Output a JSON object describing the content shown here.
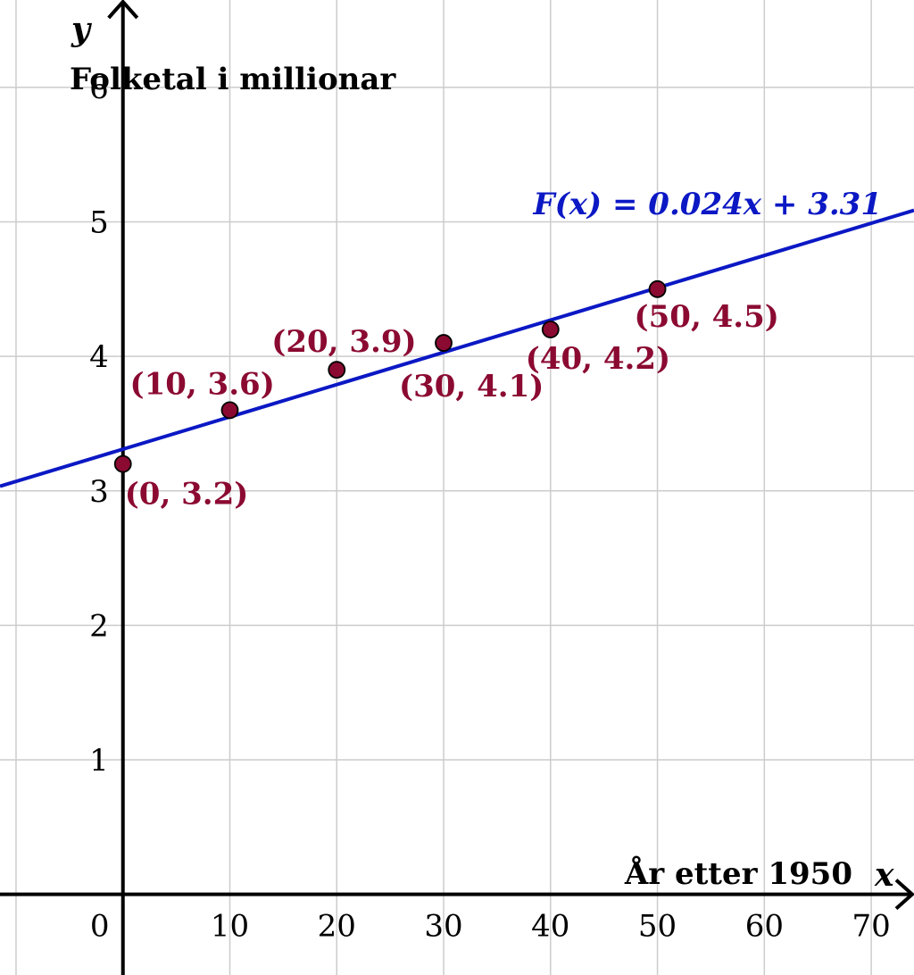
{
  "chart_data": {
    "type": "scatter",
    "x_axis": {
      "label": "År etter 1950",
      "variable": "x",
      "range": [
        -11.5,
        74
      ],
      "ticks": [
        0,
        10,
        20,
        30,
        40,
        50,
        60,
        70
      ]
    },
    "y_axis": {
      "label": "Folketal i millionar",
      "variable": "y",
      "range": [
        -0.6,
        6.65
      ],
      "ticks": [
        1,
        2,
        3,
        4,
        5,
        6
      ]
    },
    "grid": true,
    "points": [
      {
        "x": 0,
        "y": 3.2,
        "label": "(0, 3.2)"
      },
      {
        "x": 10,
        "y": 3.6,
        "label": "(10, 3.6)"
      },
      {
        "x": 20,
        "y": 3.9,
        "label": "(20, 3.9)"
      },
      {
        "x": 30,
        "y": 4.1,
        "label": "(30, 4.1)"
      },
      {
        "x": 40,
        "y": 4.2,
        "label": "(40, 4.2)"
      },
      {
        "x": 50,
        "y": 4.5,
        "label": "(50, 4.5)"
      }
    ],
    "trendline": {
      "slope": 0.024,
      "intercept": 3.31,
      "label": "F(x) = 0.024x + 3.31"
    },
    "colors": {
      "points": "#8b0a32",
      "trendline": "#0b18c4",
      "grid": "#cccccc"
    }
  }
}
